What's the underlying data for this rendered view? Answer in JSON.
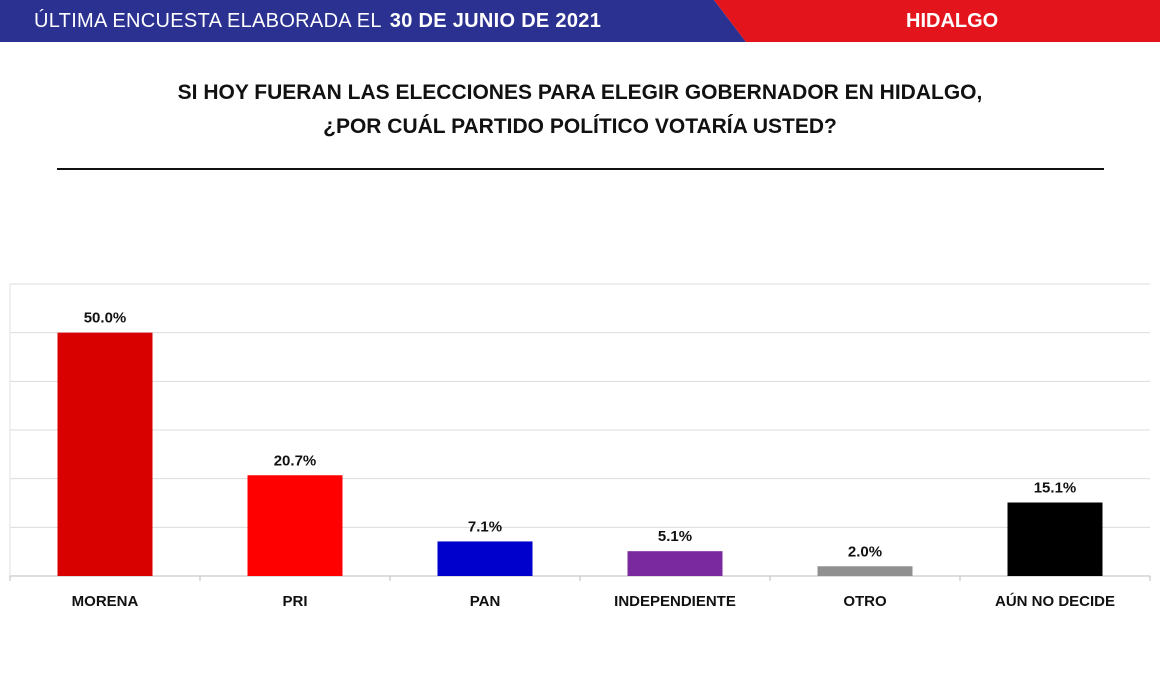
{
  "header": {
    "left_label": "ÚLTIMA ENCUESTA ELABORADA EL",
    "date": "30 DE JUNIO DE 2021",
    "region": "HIDALGO",
    "left_color": "#2b3191",
    "right_color": "#e3141b"
  },
  "question": {
    "line1": "SI HOY FUERAN LAS ELECCIONES PARA ELEGIR GOBERNADOR EN HIDALGO,",
    "line2": "¿POR CUÁL PARTIDO POLÍTICO VOTARÍA USTED?"
  },
  "chart_data": {
    "type": "bar",
    "title": "",
    "xlabel": "",
    "ylabel": "",
    "ylim": [
      0,
      60
    ],
    "grid": true,
    "categories": [
      "MORENA",
      "PRI",
      "PAN",
      "INDEPENDIENTE",
      "OTRO",
      "AÚN NO DECIDE"
    ],
    "values": [
      50.0,
      20.7,
      7.1,
      5.1,
      2.0,
      15.1
    ],
    "value_labels": [
      "50.0%",
      "20.7%",
      "7.1%",
      "5.1%",
      "2.0%",
      "15.1%"
    ],
    "colors": [
      "#d90000",
      "#ff0000",
      "#0000cc",
      "#7a2a9e",
      "#909090",
      "#000000"
    ]
  }
}
